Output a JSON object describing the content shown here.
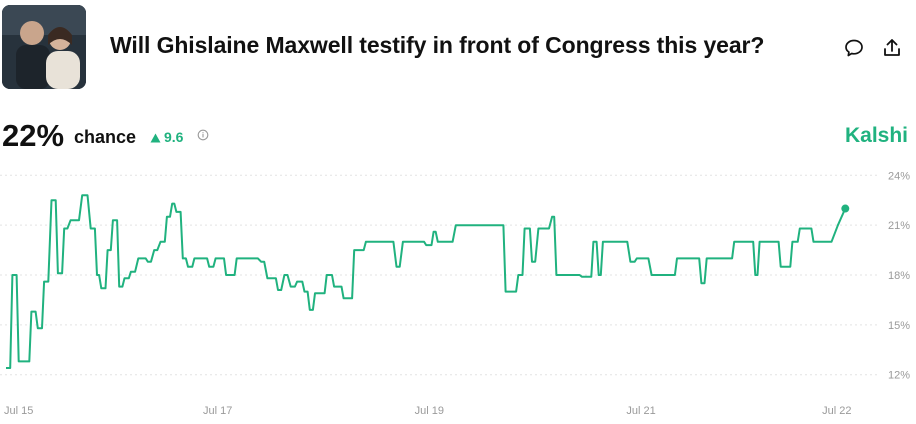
{
  "header": {
    "title": "Will Ghislaine Maxwell testify in front of Congress this year?",
    "thumbnail_alt": "",
    "comment_icon": "comment-icon",
    "share_icon": "share-upload-icon"
  },
  "stats": {
    "percent": "22%",
    "chance_label": "chance",
    "delta": "9.6",
    "delta_direction": "up",
    "info_icon": "info-icon"
  },
  "brand": "Kalshi",
  "colors": {
    "accent": "#20b27f",
    "grid": "#e3e3e3",
    "tick": "#9a9a9a"
  },
  "chart_data": {
    "type": "line",
    "x_tick_labels": [
      "Jul 15",
      "Jul 17",
      "Jul 19",
      "Jul 21",
      "Jul 22"
    ],
    "y_tick_labels": [
      "24%",
      "21%",
      "18%",
      "15%",
      "12%"
    ],
    "y_ticks": [
      24,
      21,
      18,
      15,
      12
    ],
    "ylim": [
      11.5,
      24.5
    ],
    "x_unit": "days since Jul 15 00:00",
    "xlim": [
      0,
      8.05
    ],
    "grid": true,
    "series": [
      {
        "name": "",
        "points": [
          [
            0.0,
            12.4
          ],
          [
            0.04,
            12.4
          ],
          [
            0.06,
            18.0
          ],
          [
            0.1,
            18.0
          ],
          [
            0.12,
            12.8
          ],
          [
            0.22,
            12.8
          ],
          [
            0.24,
            15.8
          ],
          [
            0.28,
            15.8
          ],
          [
            0.3,
            14.8
          ],
          [
            0.34,
            14.8
          ],
          [
            0.36,
            17.6
          ],
          [
            0.4,
            17.6
          ],
          [
            0.43,
            22.5
          ],
          [
            0.47,
            22.5
          ],
          [
            0.49,
            18.1
          ],
          [
            0.53,
            18.1
          ],
          [
            0.55,
            20.8
          ],
          [
            0.58,
            20.8
          ],
          [
            0.61,
            21.3
          ],
          [
            0.69,
            21.3
          ],
          [
            0.72,
            22.8
          ],
          [
            0.77,
            22.8
          ],
          [
            0.8,
            20.8
          ],
          [
            0.84,
            20.8
          ],
          [
            0.86,
            18.0
          ],
          [
            0.88,
            18.0
          ],
          [
            0.9,
            17.2
          ],
          [
            0.94,
            17.2
          ],
          [
            0.96,
            19.5
          ],
          [
            0.99,
            19.5
          ],
          [
            1.01,
            21.3
          ],
          [
            1.05,
            21.3
          ],
          [
            1.07,
            17.3
          ],
          [
            1.1,
            17.3
          ],
          [
            1.12,
            17.8
          ],
          [
            1.16,
            17.8
          ],
          [
            1.18,
            18.2
          ],
          [
            1.22,
            18.2
          ],
          [
            1.25,
            19.0
          ],
          [
            1.32,
            19.0
          ],
          [
            1.34,
            18.8
          ],
          [
            1.37,
            18.8
          ],
          [
            1.4,
            19.5
          ],
          [
            1.43,
            19.5
          ],
          [
            1.46,
            20.0
          ],
          [
            1.5,
            20.0
          ],
          [
            1.52,
            21.5
          ],
          [
            1.55,
            21.5
          ],
          [
            1.57,
            22.3
          ],
          [
            1.59,
            22.3
          ],
          [
            1.61,
            21.8
          ],
          [
            1.65,
            21.8
          ],
          [
            1.67,
            19.0
          ],
          [
            1.7,
            19.0
          ],
          [
            1.72,
            18.5
          ],
          [
            1.76,
            18.5
          ],
          [
            1.78,
            19.0
          ],
          [
            1.9,
            19.0
          ],
          [
            1.92,
            18.5
          ],
          [
            1.96,
            18.5
          ],
          [
            1.98,
            19.0
          ],
          [
            2.06,
            19.0
          ],
          [
            2.08,
            18.0
          ],
          [
            2.16,
            18.0
          ],
          [
            2.18,
            19.0
          ],
          [
            2.38,
            19.0
          ],
          [
            2.41,
            18.8
          ],
          [
            2.44,
            18.8
          ],
          [
            2.47,
            17.8
          ],
          [
            2.55,
            17.8
          ],
          [
            2.57,
            17.1
          ],
          [
            2.6,
            17.1
          ],
          [
            2.63,
            18.0
          ],
          [
            2.66,
            18.0
          ],
          [
            2.69,
            17.3
          ],
          [
            2.73,
            17.3
          ],
          [
            2.75,
            17.6
          ],
          [
            2.8,
            17.6
          ],
          [
            2.82,
            17.0
          ],
          [
            2.85,
            17.0
          ],
          [
            2.87,
            15.9
          ],
          [
            2.9,
            15.9
          ],
          [
            2.92,
            16.9
          ],
          [
            3.01,
            16.9
          ],
          [
            3.03,
            18.0
          ],
          [
            3.08,
            18.0
          ],
          [
            3.1,
            17.3
          ],
          [
            3.13,
            17.3
          ],
          [
            3.15,
            17.3
          ],
          [
            3.17,
            17.3
          ],
          [
            3.19,
            16.6
          ],
          [
            3.27,
            16.6
          ],
          [
            3.29,
            19.5
          ],
          [
            3.38,
            19.5
          ],
          [
            3.4,
            20.0
          ],
          [
            3.66,
            20.0
          ],
          [
            3.69,
            18.5
          ],
          [
            3.72,
            18.5
          ],
          [
            3.75,
            20.0
          ],
          [
            3.95,
            20.0
          ],
          [
            3.97,
            19.8
          ],
          [
            4.02,
            19.8
          ],
          [
            4.04,
            20.6
          ],
          [
            4.06,
            20.6
          ],
          [
            4.08,
            20.0
          ],
          [
            4.22,
            20.0
          ],
          [
            4.25,
            21.0
          ],
          [
            4.7,
            21.0
          ],
          [
            4.72,
            17.0
          ],
          [
            4.82,
            17.0
          ],
          [
            4.84,
            18.0
          ],
          [
            4.88,
            18.0
          ],
          [
            4.9,
            20.8
          ],
          [
            4.95,
            20.8
          ],
          [
            4.97,
            18.8
          ],
          [
            5.0,
            18.8
          ],
          [
            5.03,
            20.8
          ],
          [
            5.13,
            20.8
          ],
          [
            5.16,
            21.5
          ],
          [
            5.18,
            21.5
          ],
          [
            5.2,
            18.0
          ],
          [
            5.42,
            18.0
          ],
          [
            5.44,
            17.9
          ],
          [
            5.53,
            17.9
          ],
          [
            5.55,
            20.0
          ],
          [
            5.58,
            20.0
          ],
          [
            5.6,
            18.0
          ],
          [
            5.62,
            18.0
          ],
          [
            5.64,
            20.0
          ],
          [
            5.87,
            20.0
          ],
          [
            5.9,
            18.8
          ],
          [
            5.94,
            18.8
          ],
          [
            5.96,
            19.0
          ],
          [
            6.07,
            19.0
          ],
          [
            6.1,
            18.0
          ],
          [
            6.32,
            18.0
          ],
          [
            6.34,
            19.0
          ],
          [
            6.55,
            19.0
          ],
          [
            6.57,
            17.5
          ],
          [
            6.6,
            17.5
          ],
          [
            6.62,
            19.0
          ],
          [
            6.86,
            19.0
          ],
          [
            6.88,
            20.0
          ],
          [
            7.06,
            20.0
          ],
          [
            7.08,
            18.0
          ],
          [
            7.1,
            18.0
          ],
          [
            7.12,
            20.0
          ],
          [
            7.3,
            20.0
          ],
          [
            7.32,
            18.5
          ],
          [
            7.41,
            18.5
          ],
          [
            7.43,
            20.0
          ],
          [
            7.48,
            20.0
          ],
          [
            7.5,
            20.8
          ],
          [
            7.61,
            20.8
          ],
          [
            7.63,
            20.0
          ],
          [
            7.8,
            20.0
          ],
          [
            7.86,
            21.0
          ],
          [
            7.93,
            22.0
          ]
        ]
      }
    ],
    "x_tick_positions": [
      0,
      2,
      4,
      6,
      7.85
    ],
    "last_point_marker": true
  }
}
